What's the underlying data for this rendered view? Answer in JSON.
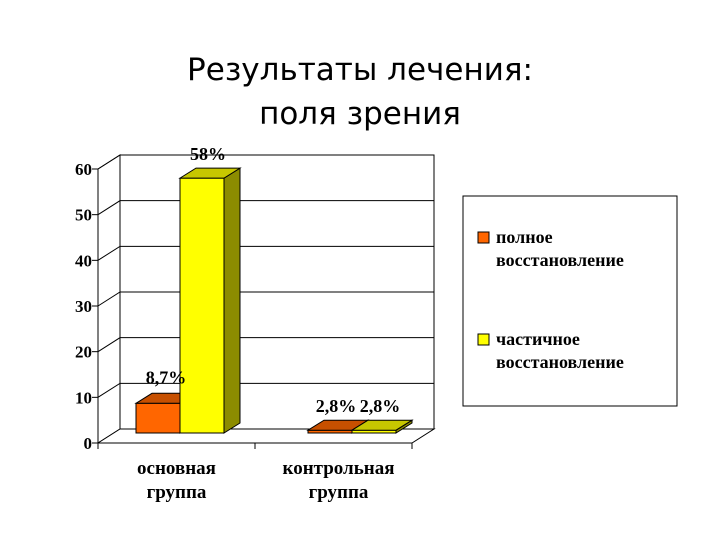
{
  "title_lines": [
    "Результаты лечения:",
    "поля зрения"
  ],
  "chart_data": {
    "type": "bar",
    "title": "",
    "xlabel": "",
    "ylabel": "",
    "categories": [
      [
        "основная",
        "группа"
      ],
      [
        "контрольная",
        "группа"
      ]
    ],
    "series": [
      {
        "name": "полное восстановление",
        "legend_lines": [
          "полное",
          "восстановление"
        ],
        "values": [
          8.7,
          2.8
        ],
        "labels": [
          "8,7%",
          "2,8%"
        ],
        "color": "#ff6600"
      },
      {
        "name": "частичное восстановление",
        "legend_lines": [
          "частичное",
          "восстановление"
        ],
        "values": [
          58,
          2.8
        ],
        "labels": [
          "58%",
          "2,8%"
        ],
        "color": "#ffff00"
      }
    ],
    "ylim": [
      0,
      60
    ],
    "yticks": [
      0,
      10,
      20,
      30,
      40,
      50,
      60
    ],
    "grid": true,
    "legend_position": "right",
    "three_d": true
  }
}
